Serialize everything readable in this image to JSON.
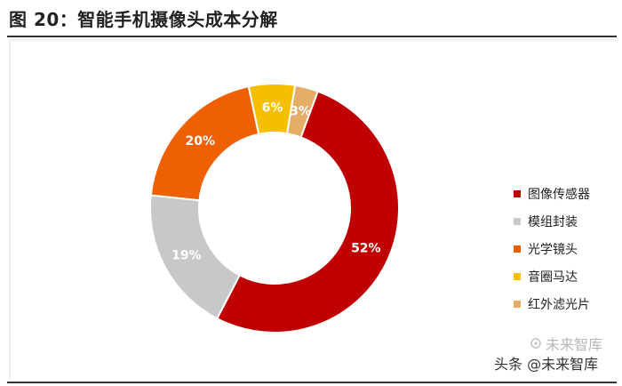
{
  "figure": {
    "title": "图 20：智能手机摄像头成本分解"
  },
  "chart_data": {
    "type": "pie",
    "variant": "donut",
    "title": "图 20：智能手机摄像头成本分解",
    "slices": [
      {
        "name": "图像传感器",
        "value": 52,
        "label": "52%",
        "color": "#c00000"
      },
      {
        "name": "模组封装",
        "value": 19,
        "label": "19%",
        "color": "#c8c8c8"
      },
      {
        "name": "光学镜头",
        "value": 20,
        "label": "20%",
        "color": "#ef6000"
      },
      {
        "name": "音圈马达",
        "value": 6,
        "label": "6%",
        "color": "#f5bf00"
      },
      {
        "name": "红外滤光片",
        "value": 3,
        "label": "3%",
        "color": "#e6ad68"
      }
    ],
    "legend_position": "right"
  },
  "watermark": {
    "text": "头条 @未来智库",
    "ghost_text": "未来智库"
  }
}
